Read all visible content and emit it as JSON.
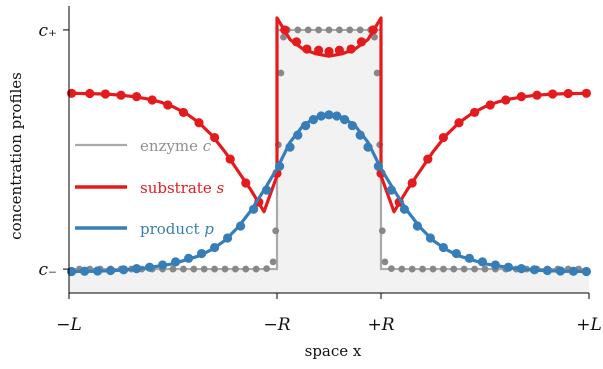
{
  "chart_data": {
    "type": "line",
    "xlabel": "space x",
    "ylabel": "concentration profiles",
    "xlim": [
      -1,
      1
    ],
    "ylim": [
      -0.1,
      1.1
    ],
    "x_ticks": [
      {
        "value": -1,
        "label": "−L"
      },
      {
        "value": -0.2,
        "label": "−R"
      },
      {
        "value": 0.2,
        "label": "+R"
      },
      {
        "value": 1,
        "label": "+L"
      }
    ],
    "y_ticks": [
      {
        "value": 0,
        "label": "c₋"
      },
      {
        "value": 1,
        "label": "c₊"
      }
    ],
    "legend_position": "center-left",
    "series": [
      {
        "name": "enzyme c",
        "color": "#aaaaaa",
        "dots_color": "#888888",
        "style": "step-filled",
        "x": [
          -1,
          -0.2,
          -0.2,
          0.2,
          0.2,
          1
        ],
        "y": [
          0,
          0,
          1,
          1,
          0,
          0
        ],
        "points_x": [
          -0.96,
          -0.92,
          -0.88,
          -0.84,
          -0.8,
          -0.76,
          -0.72,
          -0.68,
          -0.64,
          -0.6,
          -0.56,
          -0.52,
          -0.48,
          -0.44,
          -0.4,
          -0.36,
          -0.32,
          -0.28,
          -0.24,
          -0.215,
          -0.205,
          -0.195,
          -0.185,
          -0.175,
          -0.16,
          -0.12,
          -0.08,
          -0.04,
          0,
          0.04,
          0.08,
          0.12,
          0.16,
          0.175,
          0.185,
          0.195,
          0.205,
          0.215,
          0.24,
          0.28,
          0.32,
          0.36,
          0.4,
          0.44,
          0.48,
          0.52,
          0.56,
          0.6,
          0.64,
          0.68,
          0.72,
          0.76,
          0.8,
          0.84,
          0.88,
          0.92,
          0.96
        ],
        "points_y": [
          0,
          0,
          0,
          0,
          0,
          0,
          0,
          0,
          0,
          0,
          0,
          0,
          0,
          0,
          0,
          0,
          0,
          0,
          0.002,
          0.03,
          0.16,
          0.52,
          0.82,
          0.97,
          1,
          1,
          1,
          1,
          1,
          1,
          1,
          1,
          1,
          0.97,
          0.82,
          0.52,
          0.16,
          0.03,
          0.002,
          0,
          0,
          0,
          0,
          0,
          0,
          0,
          0,
          0,
          0,
          0,
          0,
          0,
          0,
          0,
          0,
          0,
          0
        ]
      },
      {
        "name": "substrate s",
        "color": "#e41a1c",
        "x": [
          -1,
          -0.95,
          -0.9,
          -0.85,
          -0.8,
          -0.75,
          -0.7,
          -0.65,
          -0.6,
          -0.55,
          -0.5,
          -0.45,
          -0.4,
          -0.35,
          -0.3,
          -0.25,
          -0.2,
          -0.2,
          -0.15,
          -0.1,
          -0.05,
          0,
          0.05,
          0.1,
          0.15,
          0.2,
          0.2,
          0.25,
          0.3,
          0.35,
          0.4,
          0.45,
          0.5,
          0.55,
          0.6,
          0.65,
          0.7,
          0.75,
          0.8,
          0.85,
          0.9,
          0.95,
          1
        ],
        "y": [
          0.735,
          0.734,
          0.733,
          0.731,
          0.727,
          0.721,
          0.712,
          0.699,
          0.679,
          0.651,
          0.612,
          0.559,
          0.49,
          0.41,
          0.33,
          0.24,
          0.39,
          1.05,
          0.96,
          0.92,
          0.9,
          0.89,
          0.9,
          0.92,
          0.96,
          1.05,
          0.39,
          0.24,
          0.33,
          0.41,
          0.49,
          0.559,
          0.612,
          0.651,
          0.679,
          0.699,
          0.712,
          0.721,
          0.727,
          0.731,
          0.733,
          0.734,
          0.735
        ],
        "points_x": [
          -0.99,
          -0.92,
          -0.86,
          -0.8,
          -0.74,
          -0.68,
          -0.62,
          -0.56,
          -0.5,
          -0.44,
          -0.38,
          -0.32,
          -0.27,
          -0.2,
          -0.17,
          -0.125,
          -0.085,
          -0.04,
          0,
          0.04,
          0.085,
          0.125,
          0.17,
          0.2,
          0.27,
          0.32,
          0.38,
          0.44,
          0.5,
          0.56,
          0.62,
          0.68,
          0.74,
          0.8,
          0.86,
          0.92,
          0.99
        ],
        "points_y": [
          0.735,
          0.734,
          0.732,
          0.727,
          0.721,
          0.707,
          0.686,
          0.655,
          0.612,
          0.55,
          0.46,
          0.36,
          0.28,
          0.4,
          1.0,
          0.95,
          0.92,
          0.915,
          0.91,
          0.915,
          0.92,
          0.95,
          1.0,
          0.4,
          0.28,
          0.36,
          0.46,
          0.55,
          0.612,
          0.655,
          0.686,
          0.707,
          0.721,
          0.727,
          0.732,
          0.734,
          0.735
        ]
      },
      {
        "name": "product p",
        "color": "#377eb8",
        "x": [
          -1,
          -0.9,
          -0.8,
          -0.7,
          -0.6,
          -0.5,
          -0.45,
          -0.4,
          -0.35,
          -0.3,
          -0.25,
          -0.2,
          -0.15,
          -0.1,
          -0.05,
          0,
          0.05,
          0.1,
          0.15,
          0.2,
          0.25,
          0.3,
          0.35,
          0.4,
          0.45,
          0.5,
          0.6,
          0.7,
          0.8,
          0.9,
          1
        ],
        "y": [
          -0.01,
          -0.009,
          -0.005,
          0.005,
          0.022,
          0.055,
          0.082,
          0.12,
          0.175,
          0.245,
          0.33,
          0.42,
          0.53,
          0.6,
          0.635,
          0.645,
          0.635,
          0.6,
          0.53,
          0.42,
          0.33,
          0.245,
          0.175,
          0.12,
          0.082,
          0.055,
          0.022,
          0.005,
          -0.005,
          -0.009,
          -0.01
        ],
        "points_x": [
          -0.99,
          -0.94,
          -0.89,
          -0.84,
          -0.79,
          -0.74,
          -0.69,
          -0.64,
          -0.59,
          -0.54,
          -0.49,
          -0.44,
          -0.39,
          -0.34,
          -0.29,
          -0.24,
          -0.19,
          -0.15,
          -0.12,
          -0.09,
          -0.06,
          -0.03,
          0,
          0.03,
          0.06,
          0.09,
          0.12,
          0.15,
          0.19,
          0.24,
          0.29,
          0.34,
          0.39,
          0.44,
          0.49,
          0.54,
          0.59,
          0.64,
          0.69,
          0.74,
          0.79,
          0.84,
          0.89,
          0.94,
          0.99
        ],
        "points_y": [
          -0.01,
          -0.009,
          -0.008,
          -0.006,
          -0.003,
          0.002,
          0.008,
          0.017,
          0.03,
          0.045,
          0.065,
          0.09,
          0.13,
          0.18,
          0.25,
          0.33,
          0.43,
          0.51,
          0.56,
          0.6,
          0.625,
          0.64,
          0.645,
          0.64,
          0.625,
          0.6,
          0.56,
          0.51,
          0.43,
          0.33,
          0.25,
          0.18,
          0.13,
          0.09,
          0.065,
          0.045,
          0.03,
          0.017,
          0.008,
          0.002,
          -0.003,
          -0.006,
          -0.008,
          -0.009,
          -0.01
        ]
      }
    ],
    "legend": [
      {
        "label": "enzyme ",
        "var": "c",
        "color": "#909090"
      },
      {
        "label": "substrate ",
        "var": "s",
        "color": "#e41a1c"
      },
      {
        "label": "product ",
        "var": "p",
        "color": "#377eb8"
      }
    ]
  }
}
